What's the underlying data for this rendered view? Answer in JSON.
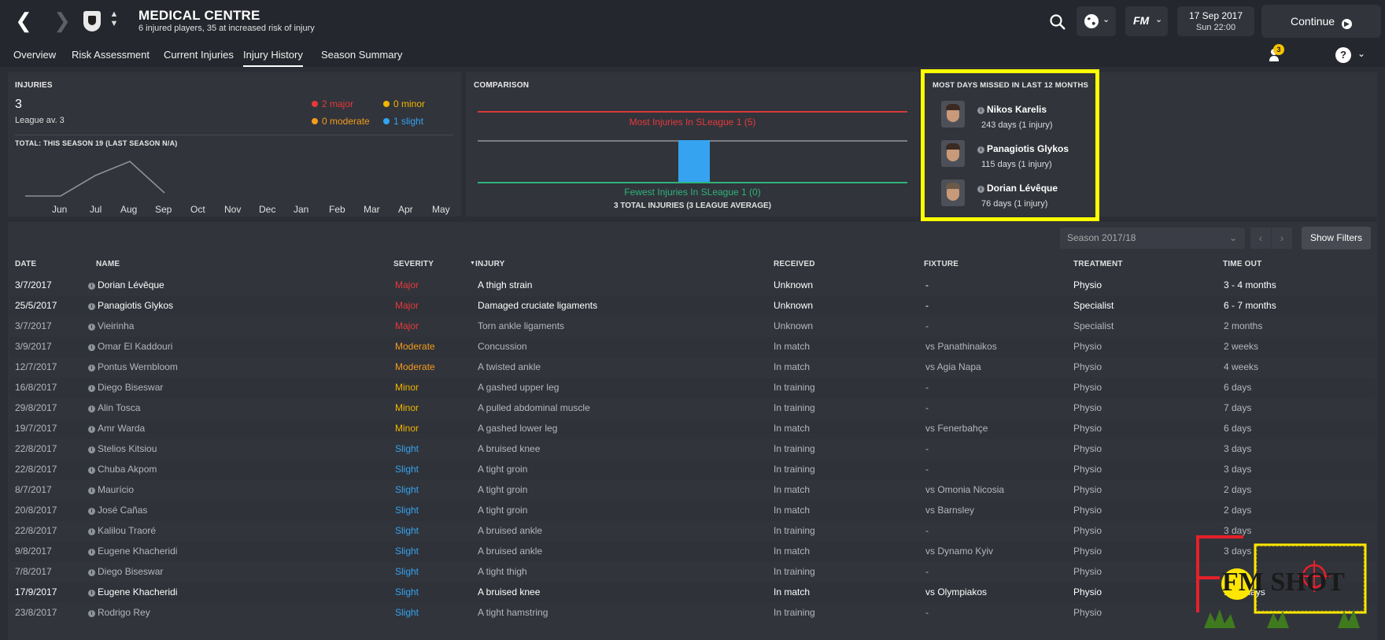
{
  "header": {
    "title": "MEDICAL CENTRE",
    "subtitle": "6 injured players, 35 at increased risk of injury",
    "date_line1": "17 Sep 2017",
    "date_line2": "Sun 22:00",
    "continue_label": "Continue",
    "fm_label": "FM"
  },
  "tabs": [
    {
      "label": "Overview"
    },
    {
      "label": "Risk Assessment"
    },
    {
      "label": "Current Injuries"
    },
    {
      "label": "Injury History"
    },
    {
      "label": "Season Summary"
    }
  ],
  "notification_count": "3",
  "injuries_panel": {
    "title": "INJURIES",
    "count": "3",
    "league_av": "League av. 3",
    "legend": {
      "major": "2 major",
      "minor": "0 minor",
      "moderate": "0 moderate",
      "slight": "1 slight"
    },
    "total_label": "TOTAL: THIS SEASON 19 (LAST SEASON N/A)",
    "months": [
      "Jun",
      "Jul",
      "Aug",
      "Sep",
      "Oct",
      "Nov",
      "Dec",
      "Jan",
      "Feb",
      "Mar",
      "Apr",
      "May"
    ]
  },
  "comparison_panel": {
    "title": "COMPARISON",
    "most_label": "Most Injuries In SLeague 1 (5)",
    "fewest_label": "Fewest Injuries In SLeague 1 (0)",
    "total_label": "3 TOTAL INJURIES (3 LEAGUE AVERAGE)"
  },
  "most_days_panel": {
    "title": "MOST DAYS MISSED IN LAST 12 MONTHS",
    "players": [
      {
        "name": "Nikos Karelis",
        "days": "243 days (1 injury)"
      },
      {
        "name": "Panagiotis Glykos",
        "days": "115 days (1 injury)"
      },
      {
        "name": "Dorian Lévêque",
        "days": "76 days (1 injury)"
      }
    ]
  },
  "table_controls": {
    "season": "Season 2017/18",
    "filters_label": "Show Filters"
  },
  "table": {
    "columns": [
      "DATE",
      "NAME",
      "SEVERITY",
      "INJURY",
      "RECEIVED",
      "FIXTURE",
      "TREATMENT",
      "TIME OUT"
    ],
    "rows": [
      {
        "date": "3/7/2017",
        "name": "Dorian Lévêque",
        "severity": "Major",
        "injury": "A thigh strain",
        "received": "Unknown",
        "fixture": "-",
        "treatment": "Physio",
        "time_out": "3 - 4 months",
        "style": "bright"
      },
      {
        "date": "25/5/2017",
        "name": "Panagiotis Glykos",
        "severity": "Major",
        "injury": "Damaged cruciate ligaments",
        "received": "Unknown",
        "fixture": "-",
        "treatment": "Specialist",
        "time_out": "6 - 7 months",
        "style": "bright"
      },
      {
        "date": "3/7/2017",
        "name": "Vieirinha",
        "severity": "Major",
        "injury": "Torn ankle ligaments",
        "received": "Unknown",
        "fixture": "-",
        "treatment": "Specialist",
        "time_out": "2 months",
        "style": "dim"
      },
      {
        "date": "3/9/2017",
        "name": "Omar El Kaddouri",
        "severity": "Moderate",
        "injury": "Concussion",
        "received": "In match",
        "fixture": "vs Panathinaikos",
        "treatment": "Physio",
        "time_out": "2 weeks",
        "style": "dim"
      },
      {
        "date": "12/7/2017",
        "name": "Pontus Wernbloom",
        "severity": "Moderate",
        "injury": "A twisted ankle",
        "received": "In match",
        "fixture": "vs Agia Napa",
        "treatment": "Physio",
        "time_out": "4 weeks",
        "style": "dim"
      },
      {
        "date": "16/8/2017",
        "name": "Diego Biseswar",
        "severity": "Minor",
        "injury": "A gashed upper leg",
        "received": "In training",
        "fixture": "-",
        "treatment": "Physio",
        "time_out": "6 days",
        "style": "dim"
      },
      {
        "date": "29/8/2017",
        "name": "Alin Tosca",
        "severity": "Minor",
        "injury": "A pulled abdominal muscle",
        "received": "In training",
        "fixture": "-",
        "treatment": "Physio",
        "time_out": "7 days",
        "style": "dim"
      },
      {
        "date": "19/7/2017",
        "name": "Amr Warda",
        "severity": "Minor",
        "injury": "A gashed lower leg",
        "received": "In match",
        "fixture": "vs Fenerbahçe",
        "treatment": "Physio",
        "time_out": "6 days",
        "style": "dim"
      },
      {
        "date": "22/8/2017",
        "name": "Stelios Kitsiou",
        "severity": "Slight",
        "injury": "A bruised knee",
        "received": "In training",
        "fixture": "-",
        "treatment": "Physio",
        "time_out": "3 days",
        "style": "dim"
      },
      {
        "date": "22/8/2017",
        "name": "Chuba Akpom",
        "severity": "Slight",
        "injury": "A tight groin",
        "received": "In training",
        "fixture": "-",
        "treatment": "Physio",
        "time_out": "3 days",
        "style": "dim"
      },
      {
        "date": "8/7/2017",
        "name": "Maurício",
        "severity": "Slight",
        "injury": "A tight groin",
        "received": "In match",
        "fixture": "vs Omonia Nicosia",
        "treatment": "Physio",
        "time_out": "2 days",
        "style": "dim"
      },
      {
        "date": "20/8/2017",
        "name": "José Cañas",
        "severity": "Slight",
        "injury": "A tight groin",
        "received": "In match",
        "fixture": "vs Barnsley",
        "treatment": "Physio",
        "time_out": "2 days",
        "style": "dim"
      },
      {
        "date": "22/8/2017",
        "name": "Kalilou Traoré",
        "severity": "Slight",
        "injury": "A bruised ankle",
        "received": "In training",
        "fixture": "-",
        "treatment": "Physio",
        "time_out": "3 days",
        "style": "dim"
      },
      {
        "date": "9/8/2017",
        "name": "Eugene Khacheridi",
        "severity": "Slight",
        "injury": "A bruised ankle",
        "received": "In match",
        "fixture": "vs Dynamo Kyiv",
        "treatment": "Physio",
        "time_out": "3 days",
        "style": "dim"
      },
      {
        "date": "7/8/2017",
        "name": "Diego Biseswar",
        "severity": "Slight",
        "injury": "A tight thigh",
        "received": "In training",
        "fixture": "-",
        "treatment": "Physio",
        "time_out": "",
        "style": "dim"
      },
      {
        "date": "17/9/2017",
        "name": "Eugene Khacheridi",
        "severity": "Slight",
        "injury": "A bruised knee",
        "received": "In match",
        "fixture": "vs Olympiakos",
        "treatment": "Physio",
        "time_out": "1 - 3 days",
        "style": "bright"
      },
      {
        "date": "23/8/2017",
        "name": "Rodrigo Rey",
        "severity": "Slight",
        "injury": "A tight hamstring",
        "received": "In training",
        "fixture": "-",
        "treatment": "Physio",
        "time_out": "",
        "style": "dim"
      }
    ]
  },
  "watermark": {
    "text": "FM SHOT"
  },
  "colors": {
    "major": "#e5393b",
    "moderate": "#f49c1c",
    "minor": "#f2b600",
    "slight": "#35a3ef",
    "highlight": "#ffff00"
  }
}
